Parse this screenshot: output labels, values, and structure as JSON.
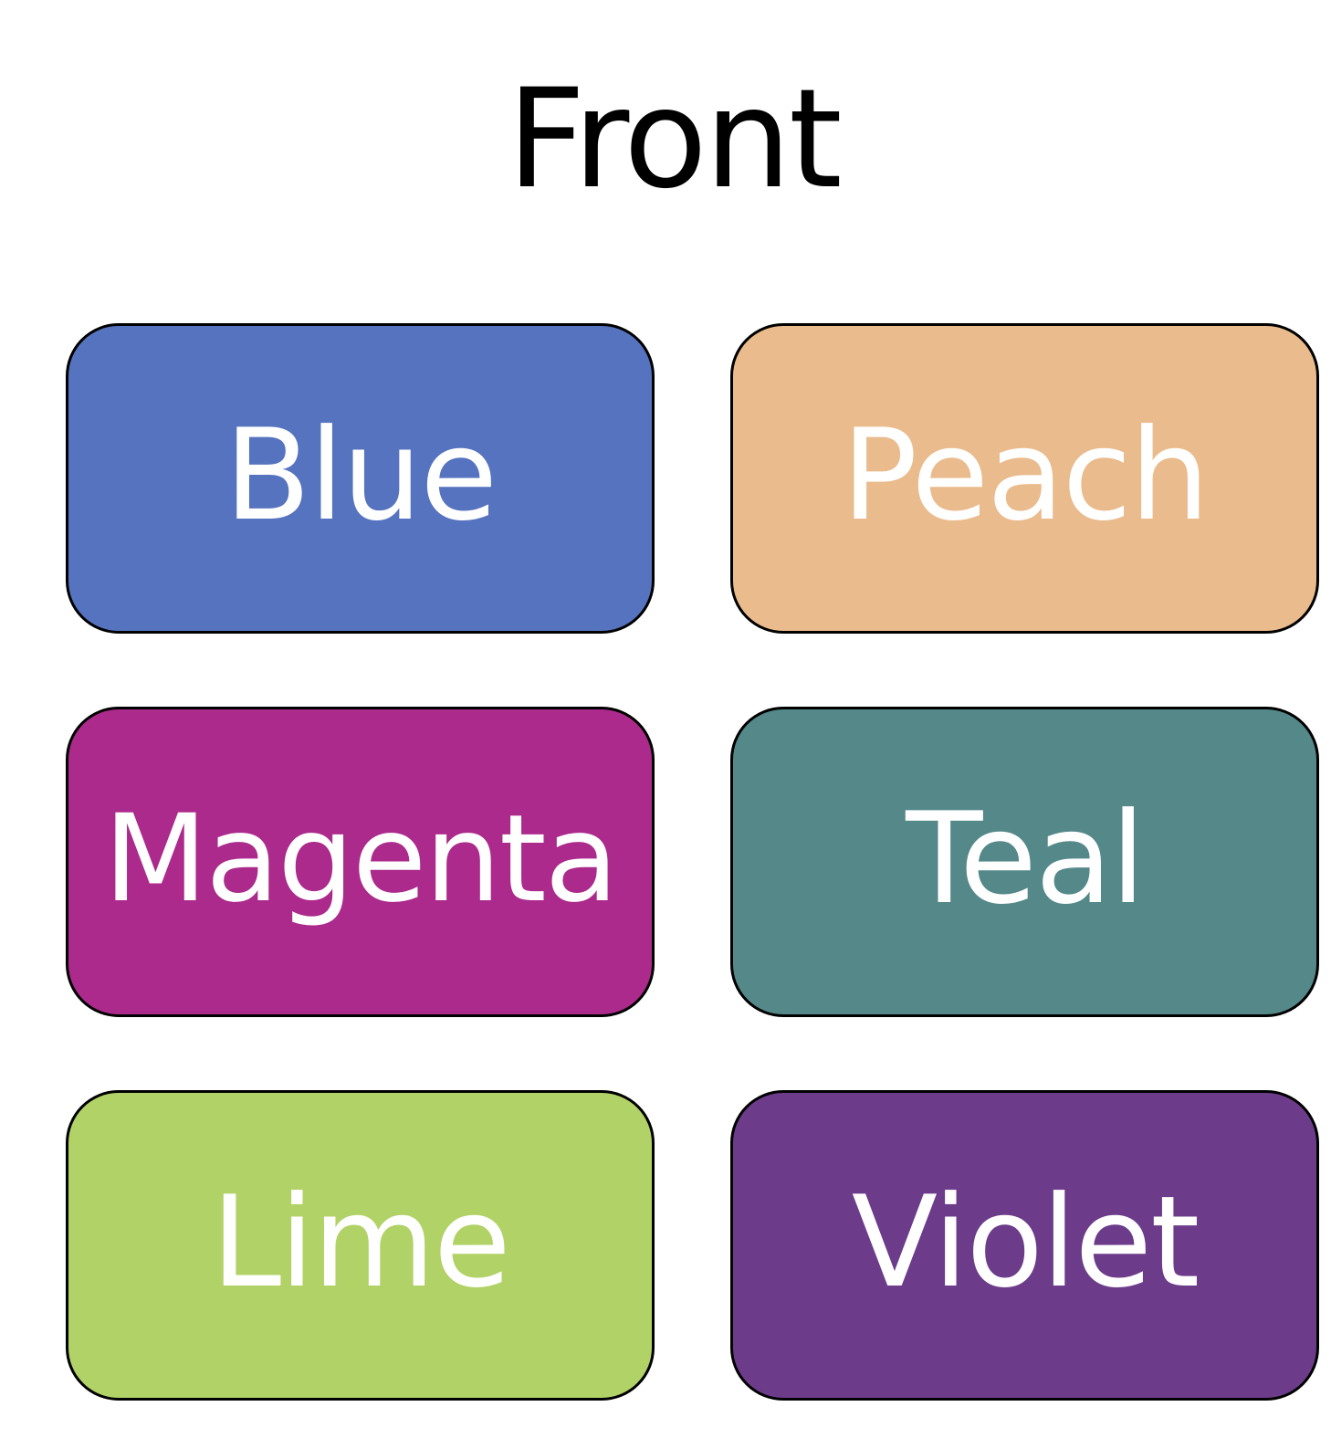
{
  "title": "Front",
  "tiles": [
    {
      "label": "Blue",
      "color": "#5573BE"
    },
    {
      "label": "Peach",
      "color": "#EABB8C"
    },
    {
      "label": "Magenta",
      "color": "#AB2A8B"
    },
    {
      "label": "Teal",
      "color": "#548889"
    },
    {
      "label": "Lime",
      "color": "#B1D266"
    },
    {
      "label": "Violet",
      "color": "#6C3C8A"
    }
  ]
}
